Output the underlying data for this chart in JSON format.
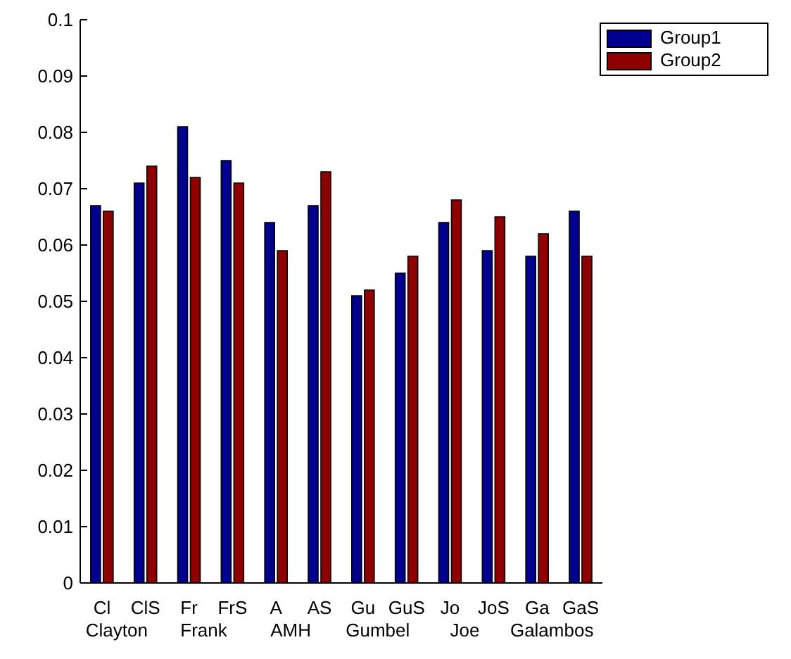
{
  "chart_data": {
    "type": "bar",
    "categories": [
      "Cl",
      "ClS",
      "Fr",
      "FrS",
      "A",
      "AS",
      "Gu",
      "GuS",
      "Jo",
      "JoS",
      "Ga",
      "GaS"
    ],
    "series": [
      {
        "name": "Group1",
        "color": "#00008f",
        "values": [
          0.067,
          0.071,
          0.081,
          0.075,
          0.064,
          0.067,
          0.051,
          0.055,
          0.064,
          0.059,
          0.058,
          0.066
        ]
      },
      {
        "name": "Group2",
        "color": "#8f0000",
        "values": [
          0.066,
          0.074,
          0.072,
          0.071,
          0.059,
          0.073,
          0.052,
          0.058,
          0.068,
          0.065,
          0.062,
          0.058
        ]
      }
    ],
    "annotations": [
      "Clayton",
      "Frank",
      "AMH",
      "Gumbel",
      "Joe",
      "Galambos"
    ],
    "ylim": [
      0,
      0.1
    ],
    "yticks": [
      0,
      0.01,
      0.02,
      0.03,
      0.04,
      0.05,
      0.06,
      0.07,
      0.08,
      0.09,
      0.1
    ],
    "legend": "top right"
  }
}
